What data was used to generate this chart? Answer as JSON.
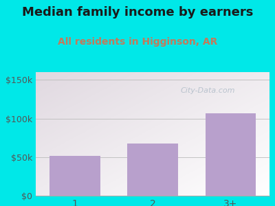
{
  "title": "Median family income by earners",
  "subtitle": "All residents in Higginson, AR",
  "categories": [
    "1",
    "2",
    "3+"
  ],
  "values": [
    52000,
    68000,
    107000
  ],
  "bar_color": "#b8a0cc",
  "title_fontsize": 13,
  "subtitle_fontsize": 10,
  "subtitle_color": "#c47a5a",
  "title_color": "#1a1a1a",
  "yticks": [
    0,
    50000,
    100000,
    150000
  ],
  "ytick_labels": [
    "$0",
    "$50k",
    "$100k",
    "$150k"
  ],
  "ylim": [
    0,
    160000
  ],
  "outer_bg": "#00e8e8",
  "watermark": "City-Data.com",
  "watermark_color": "#b0bcc8"
}
